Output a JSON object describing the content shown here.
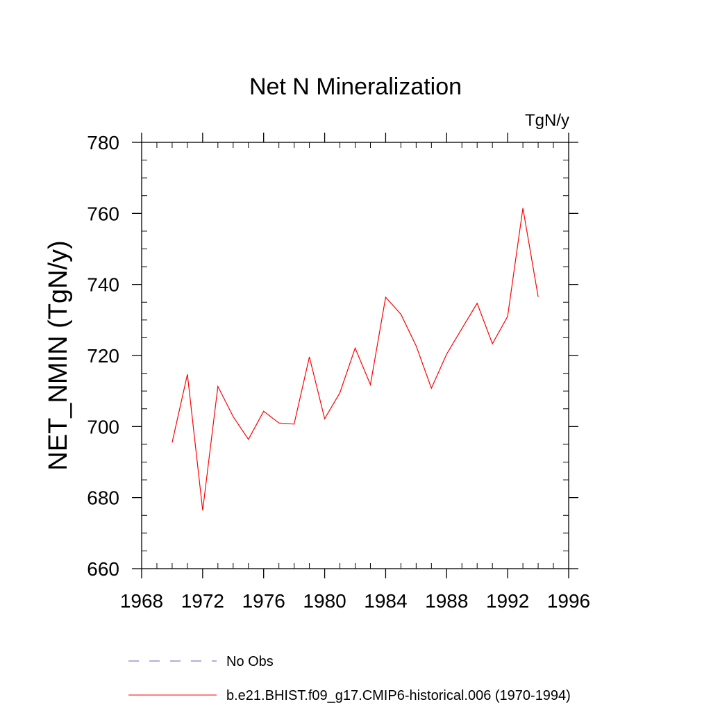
{
  "chart_data": {
    "type": "line",
    "title": "Net N Mineralization",
    "units_label": "TgN/y",
    "ylabel": "NET_NMIN  (TgN/y)",
    "xlabel": "",
    "xlim": [
      1968,
      1996
    ],
    "ylim": [
      660,
      780
    ],
    "x_ticks": [
      1968,
      1972,
      1976,
      1980,
      1984,
      1988,
      1992,
      1996
    ],
    "y_ticks": [
      660,
      680,
      700,
      720,
      740,
      760,
      780
    ],
    "grid": false,
    "series": [
      {
        "name": "b.e21.BHIST.f09_g17.CMIP6-historical.006 (1970-1994)",
        "color": "#ff0000",
        "x": [
          1970,
          1971,
          1972,
          1973,
          1974,
          1975,
          1976,
          1977,
          1978,
          1979,
          1980,
          1981,
          1982,
          1983,
          1984,
          1985,
          1986,
          1987,
          1988,
          1989,
          1990,
          1991,
          1992,
          1993,
          1994
        ],
        "values": [
          695.5,
          714.7,
          676.4,
          711.3,
          702.8,
          696.4,
          704.3,
          701.0,
          700.7,
          719.6,
          702.2,
          709.5,
          722.1,
          711.8,
          736.4,
          731.6,
          722.7,
          710.8,
          720.4,
          727.6,
          734.7,
          723.3,
          731.0,
          761.5,
          736.5
        ]
      }
    ],
    "legend": {
      "placement": "bottom",
      "entries": [
        {
          "label": "No Obs",
          "color": "#6060c0",
          "style": "dashed"
        },
        {
          "label": "b.e21.BHIST.f09_g17.CMIP6-historical.006 (1970-1994)",
          "color": "#ff0000",
          "style": "solid"
        }
      ]
    }
  }
}
